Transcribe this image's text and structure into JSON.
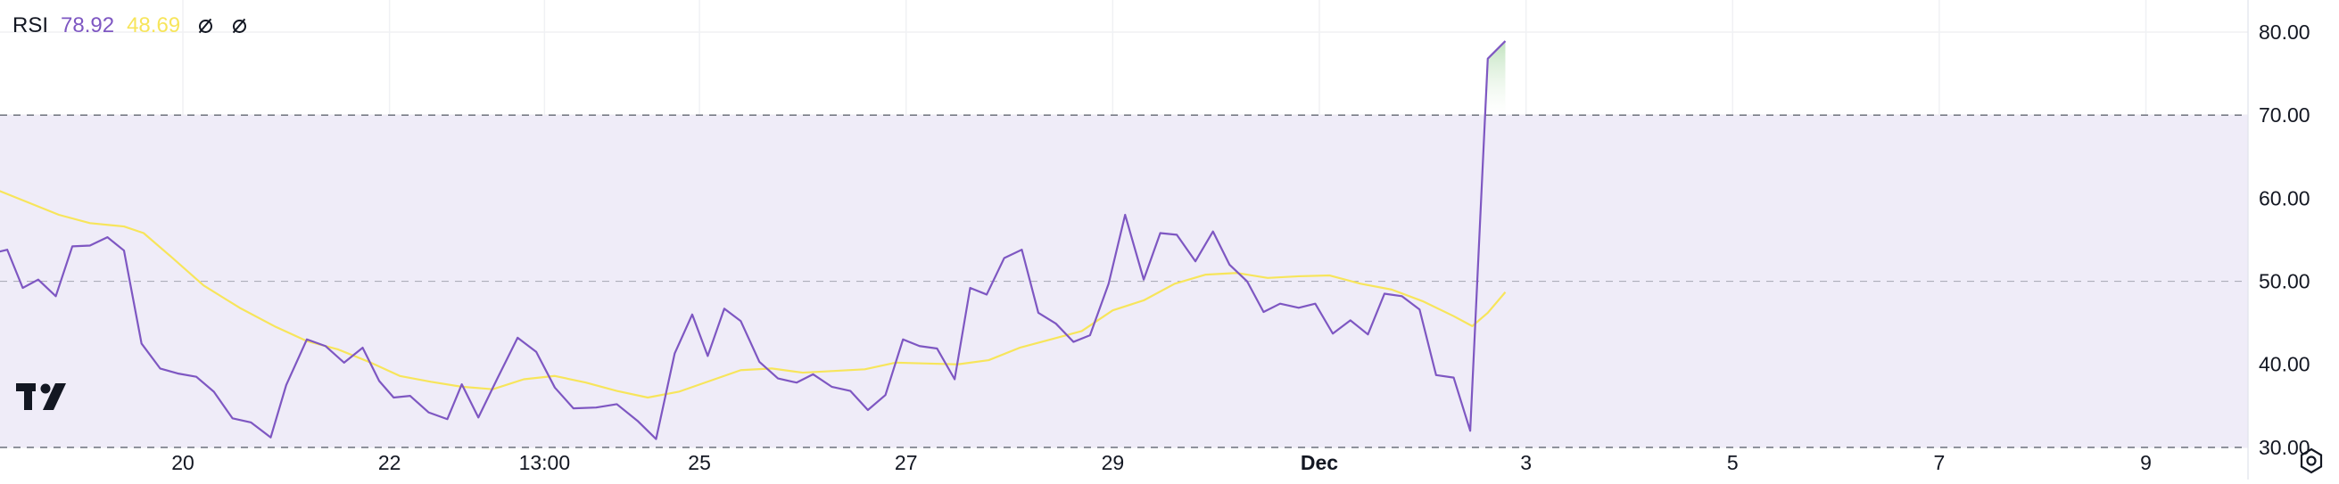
{
  "legend": {
    "indicator_name": "RSI",
    "rsi_value": "78.92",
    "ma_value": "48.69",
    "icons": [
      "hidden-source-icon",
      "hidden-source-icon"
    ]
  },
  "colors": {
    "rsi_line": "#7e57c2",
    "ma_line": "#f7e55b",
    "band_fill": "#efecf8",
    "band_line": "#787b86",
    "grid": "#f0f1f4",
    "text": "#131722"
  },
  "chart_data": {
    "type": "line",
    "ylim": [
      26,
      84
    ],
    "y_ticks": [
      "80.00",
      "70.00",
      "60.00",
      "50.00",
      "40.00",
      "30.00"
    ],
    "bands": {
      "upper": 70,
      "middle": 50,
      "lower": 30
    },
    "x_ticks": [
      {
        "label": "20",
        "t": 20
      },
      {
        "label": "22",
        "t": 22
      },
      {
        "label": "13:00",
        "t": 23.5
      },
      {
        "label": "25",
        "t": 25
      },
      {
        "label": "27",
        "t": 27
      },
      {
        "label": "29",
        "t": 29
      },
      {
        "label": "Dec",
        "t": 31,
        "bold": true
      },
      {
        "label": "3",
        "t": 33
      },
      {
        "label": "5",
        "t": 35
      },
      {
        "label": "7",
        "t": 37
      },
      {
        "label": "9",
        "t": 39
      }
    ],
    "xlim": [
      18.2,
      41.8
    ],
    "series": [
      {
        "role": "rsi",
        "points": [
          [
            18.2,
            53.5
          ],
          [
            18.3,
            53.8
          ],
          [
            18.45,
            49.2
          ],
          [
            18.6,
            50.2
          ],
          [
            18.77,
            48.2
          ],
          [
            18.93,
            54.2
          ],
          [
            19.1,
            54.3
          ],
          [
            19.27,
            55.3
          ],
          [
            19.43,
            53.7
          ],
          [
            19.6,
            42.5
          ],
          [
            19.78,
            39.5
          ],
          [
            19.95,
            38.9
          ],
          [
            20.13,
            38.5
          ],
          [
            20.3,
            36.7
          ],
          [
            20.48,
            33.5
          ],
          [
            20.66,
            33.0
          ],
          [
            20.85,
            31.2
          ],
          [
            21.0,
            37.5
          ],
          [
            21.2,
            43.0
          ],
          [
            21.38,
            42.2
          ],
          [
            21.56,
            40.2
          ],
          [
            21.74,
            42.0
          ],
          [
            21.9,
            38.0
          ],
          [
            22.04,
            36.0
          ],
          [
            22.2,
            36.2
          ],
          [
            22.38,
            34.2
          ],
          [
            22.56,
            33.4
          ],
          [
            22.7,
            37.6
          ],
          [
            22.86,
            33.6
          ],
          [
            23.04,
            38.2
          ],
          [
            23.24,
            43.2
          ],
          [
            23.42,
            41.5
          ],
          [
            23.6,
            37.2
          ],
          [
            23.78,
            34.7
          ],
          [
            24.0,
            34.8
          ],
          [
            24.2,
            35.2
          ],
          [
            24.4,
            33.2
          ],
          [
            24.58,
            31.0
          ],
          [
            24.76,
            41.3
          ],
          [
            24.93,
            46.0
          ],
          [
            25.08,
            41.0
          ],
          [
            25.24,
            46.7
          ],
          [
            25.4,
            45.2
          ],
          [
            25.58,
            40.3
          ],
          [
            25.76,
            38.3
          ],
          [
            25.94,
            37.8
          ],
          [
            26.1,
            38.8
          ],
          [
            26.28,
            37.3
          ],
          [
            26.46,
            36.8
          ],
          [
            26.63,
            34.5
          ],
          [
            26.8,
            36.3
          ],
          [
            26.97,
            43.0
          ],
          [
            27.13,
            42.2
          ],
          [
            27.3,
            41.9
          ],
          [
            27.47,
            38.2
          ],
          [
            27.62,
            49.2
          ],
          [
            27.78,
            48.4
          ],
          [
            27.95,
            52.8
          ],
          [
            28.12,
            53.8
          ],
          [
            28.28,
            46.2
          ],
          [
            28.45,
            44.9
          ],
          [
            28.62,
            42.7
          ],
          [
            28.78,
            43.5
          ],
          [
            28.96,
            49.7
          ],
          [
            29.12,
            58.0
          ],
          [
            29.3,
            50.2
          ],
          [
            29.46,
            55.8
          ],
          [
            29.62,
            55.6
          ],
          [
            29.8,
            52.4
          ],
          [
            29.97,
            56.0
          ],
          [
            30.13,
            52.0
          ],
          [
            30.3,
            50.0
          ],
          [
            30.46,
            46.3
          ],
          [
            30.62,
            47.3
          ],
          [
            30.8,
            46.8
          ],
          [
            30.96,
            47.3
          ],
          [
            31.13,
            43.7
          ],
          [
            31.3,
            45.3
          ],
          [
            31.47,
            43.6
          ],
          [
            31.63,
            48.5
          ],
          [
            31.8,
            48.2
          ],
          [
            31.97,
            46.6
          ],
          [
            32.13,
            38.7
          ],
          [
            32.3,
            38.4
          ],
          [
            32.46,
            32.0
          ],
          [
            32.63,
            76.8
          ],
          [
            32.8,
            78.92
          ]
        ]
      },
      {
        "role": "ma",
        "points": [
          [
            18.2,
            61.0
          ],
          [
            18.5,
            59.5
          ],
          [
            18.8,
            58.0
          ],
          [
            19.1,
            57.0
          ],
          [
            19.43,
            56.6
          ],
          [
            19.62,
            55.8
          ],
          [
            19.9,
            52.8
          ],
          [
            20.2,
            49.5
          ],
          [
            20.55,
            46.8
          ],
          [
            20.9,
            44.5
          ],
          [
            21.2,
            42.8
          ],
          [
            21.5,
            41.8
          ],
          [
            21.8,
            40.3
          ],
          [
            22.1,
            38.6
          ],
          [
            22.4,
            37.9
          ],
          [
            22.7,
            37.3
          ],
          [
            23.0,
            37.0
          ],
          [
            23.3,
            38.2
          ],
          [
            23.6,
            38.6
          ],
          [
            23.9,
            37.8
          ],
          [
            24.2,
            36.8
          ],
          [
            24.5,
            36.0
          ],
          [
            24.8,
            36.7
          ],
          [
            25.1,
            38.0
          ],
          [
            25.4,
            39.3
          ],
          [
            25.7,
            39.5
          ],
          [
            26.0,
            39.0
          ],
          [
            26.3,
            39.2
          ],
          [
            26.6,
            39.4
          ],
          [
            26.9,
            40.2
          ],
          [
            27.2,
            40.1
          ],
          [
            27.5,
            40.0
          ],
          [
            27.8,
            40.5
          ],
          [
            28.1,
            42.0
          ],
          [
            28.4,
            43.0
          ],
          [
            28.7,
            44.0
          ],
          [
            29.0,
            46.5
          ],
          [
            29.3,
            47.7
          ],
          [
            29.6,
            49.7
          ],
          [
            29.9,
            50.8
          ],
          [
            30.2,
            51.0
          ],
          [
            30.5,
            50.4
          ],
          [
            30.8,
            50.6
          ],
          [
            31.1,
            50.7
          ],
          [
            31.4,
            49.7
          ],
          [
            31.7,
            49.0
          ],
          [
            32.0,
            47.6
          ],
          [
            32.3,
            45.8
          ],
          [
            32.48,
            44.6
          ],
          [
            32.63,
            46.2
          ],
          [
            32.8,
            48.69
          ]
        ]
      }
    ]
  }
}
